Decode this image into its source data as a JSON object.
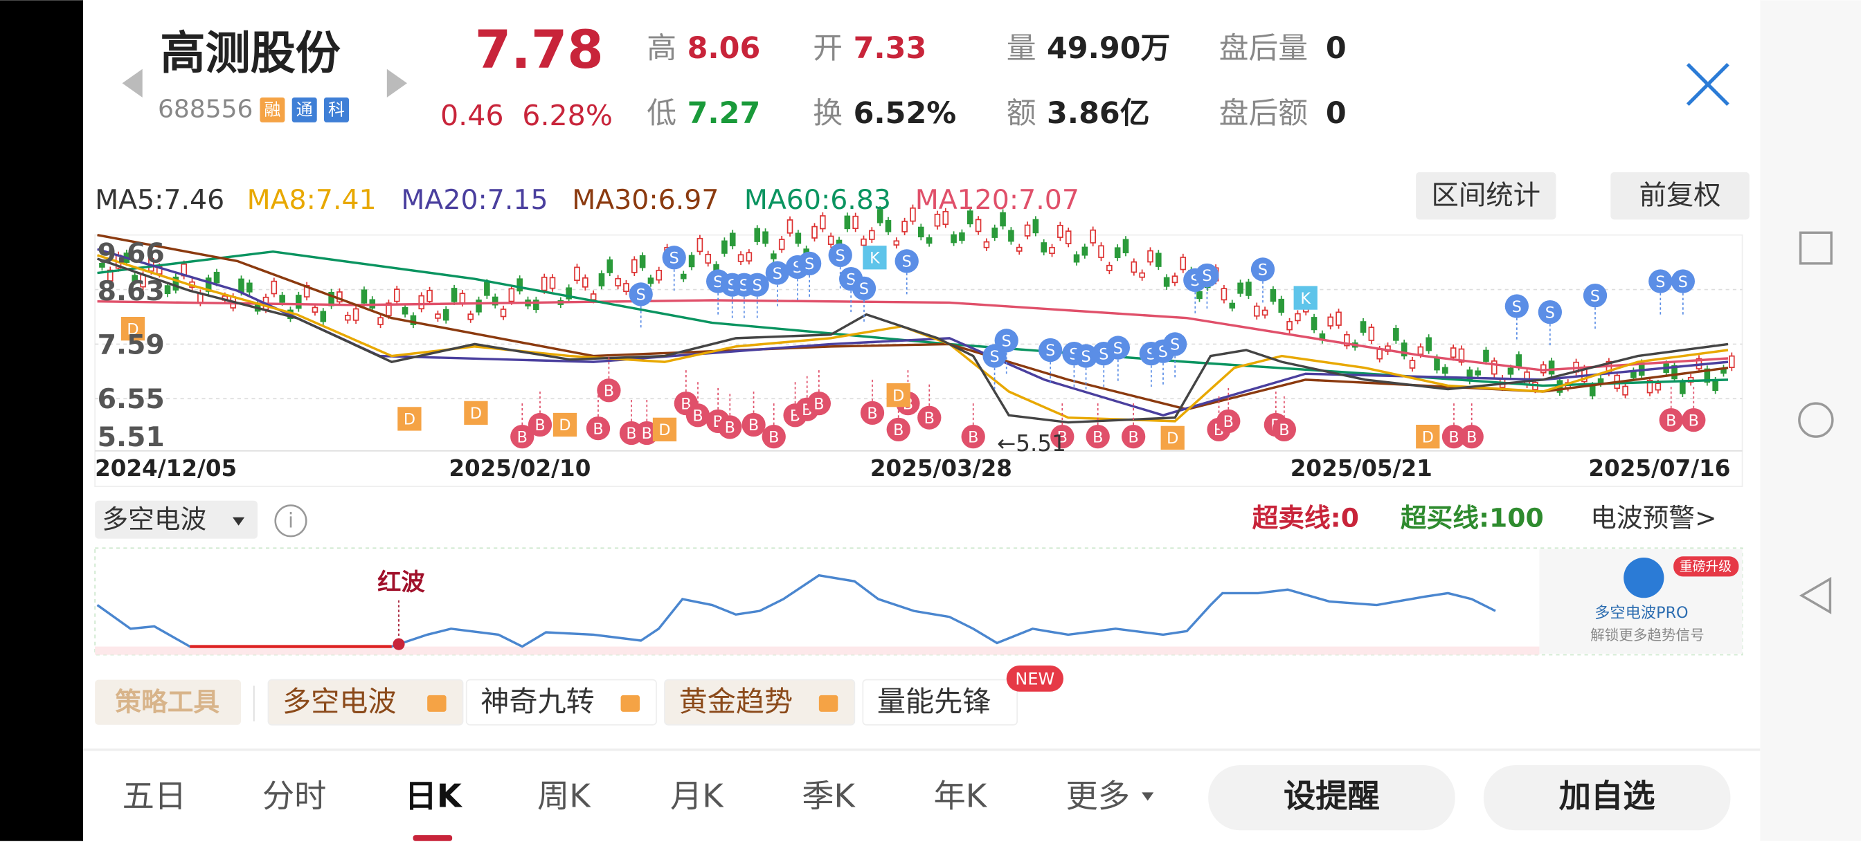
{
  "header": {
    "name": "高测股份",
    "code": "688556",
    "badges": [
      "融",
      "通",
      "科"
    ],
    "price": "7.78",
    "change": "0.46",
    "change_pct": "6.28%",
    "stats": [
      {
        "label": "高",
        "value": "8.06"
      },
      {
        "label": "开",
        "value": "7.33"
      },
      {
        "label": "量",
        "value": "49.90万"
      },
      {
        "label": "盘后量",
        "value": "0"
      },
      {
        "label": "低",
        "value": "7.27"
      },
      {
        "label": "换",
        "value": "6.52%"
      },
      {
        "label": "额",
        "value": "3.86亿"
      },
      {
        "label": "盘后额",
        "value": "0"
      }
    ]
  },
  "ma": [
    "MA5:7.46",
    "MA8:7.41",
    "MA20:7.15",
    "MA30:6.97",
    "MA60:6.83",
    "MA120:7.07"
  ],
  "buttons": [
    "区间统计",
    "前复权"
  ],
  "y_labels": [
    "9.66",
    "8.63",
    "7.59",
    "6.55",
    "5.51"
  ],
  "x_labels": [
    "2024/12/05",
    "2025/02/10",
    "2025/03/28",
    "2025/05/21",
    "2025/07/16"
  ],
  "low_annotation": "←5.51",
  "markers": [
    "S",
    "S",
    "S",
    "S",
    "S",
    "S",
    "S",
    "S",
    "S",
    "S",
    "S",
    "S",
    "S",
    "S",
    "S",
    "S",
    "S",
    "S",
    "S",
    "S",
    "S",
    "S",
    "S",
    "S",
    "S",
    "S",
    "S",
    "S",
    "S",
    "S",
    "S",
    "K",
    "K",
    "B",
    "B",
    "B",
    "B",
    "B",
    "B",
    "B",
    "B",
    "B",
    "B",
    "B",
    "B",
    "B",
    "B",
    "B",
    "B",
    "B",
    "B",
    "B",
    "B",
    "B",
    "B",
    "B",
    "B",
    "B",
    "B",
    "B",
    "B",
    "B",
    "B",
    "B",
    "D",
    "D",
    "D",
    "D",
    "D",
    "D",
    "D",
    "D"
  ],
  "indicator": {
    "name": "多空电波",
    "oversell": "超卖线:0",
    "overbuy": "超买线:100",
    "alert": "电波预警>",
    "wave_label": "红波",
    "promo_badge": "重磅升级",
    "promo_title": "多空电波PRO",
    "promo_text": "解锁更多趋势信号"
  },
  "tools": {
    "title": "策略工具",
    "items": [
      "多空电波",
      "神奇九转",
      "黄金趋势",
      "量能先锋"
    ],
    "new": "NEW"
  },
  "tabs": [
    "五日",
    "分时",
    "日K",
    "周K",
    "月K",
    "季K",
    "年K",
    "更多"
  ],
  "actions": [
    "设提醒",
    "加自选"
  ]
}
